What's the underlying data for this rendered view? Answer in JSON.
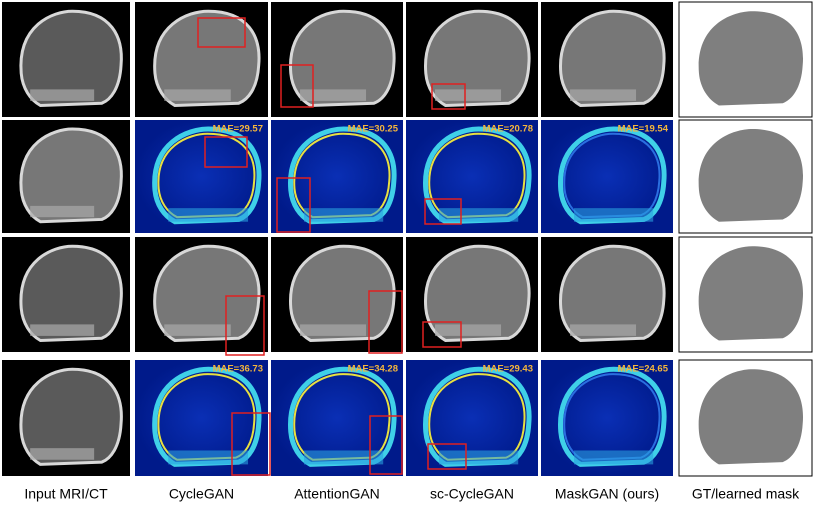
{
  "columns": [
    "Input MRI/CT",
    "CycleGAN",
    "AttentionGAN",
    "sc-CycleGAN",
    "MaskGAN (ours)",
    "GT/learned mask"
  ],
  "mae_rows": [
    [
      "MAE=29.57",
      "MAE=30.25",
      "MAE=20.78",
      "MAE=19.54"
    ],
    [
      "MAE=36.73",
      "MAE=34.28",
      "MAE=29.43",
      "MAE=24.65"
    ]
  ]
}
